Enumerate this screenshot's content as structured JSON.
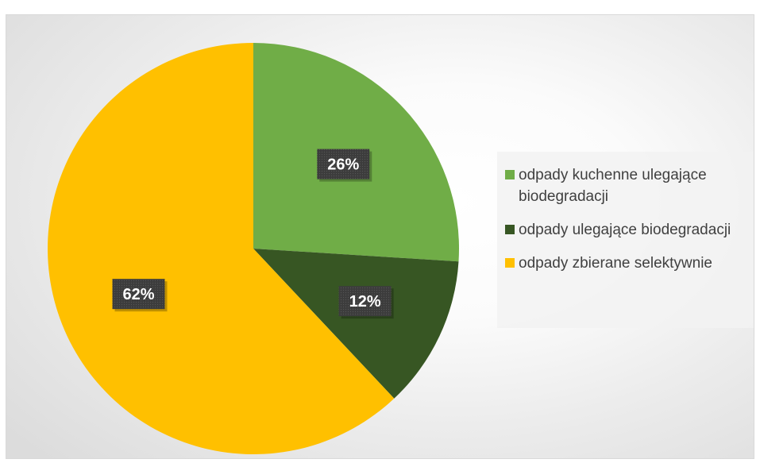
{
  "chart_data": {
    "type": "pie",
    "title": "",
    "start_angle_deg": 0,
    "direction": "clockwise",
    "legend_position": "right",
    "slices": [
      {
        "label": "odpady kuchenne ulegające biodegradacji",
        "value": 26,
        "display": "26%",
        "color": "#70ad47"
      },
      {
        "label": "odpady ulegające biodegradacji",
        "value": 12,
        "display": "12%",
        "color": "#375623"
      },
      {
        "label": "odpady zbierane selektywnie",
        "value": 62,
        "display": "62%",
        "color": "#ffc000"
      }
    ],
    "data_label_style": {
      "background": "#3a3a3a",
      "text_color": "#ffffff"
    }
  },
  "legend": {
    "items": [
      {
        "label": "odpady kuchenne ulegające biodegradacji",
        "color": "#70ad47"
      },
      {
        "label": "odpady ulegające biodegradacji",
        "color": "#375623"
      },
      {
        "label": "odpady zbierane selektywnie",
        "color": "#ffc000"
      }
    ]
  }
}
